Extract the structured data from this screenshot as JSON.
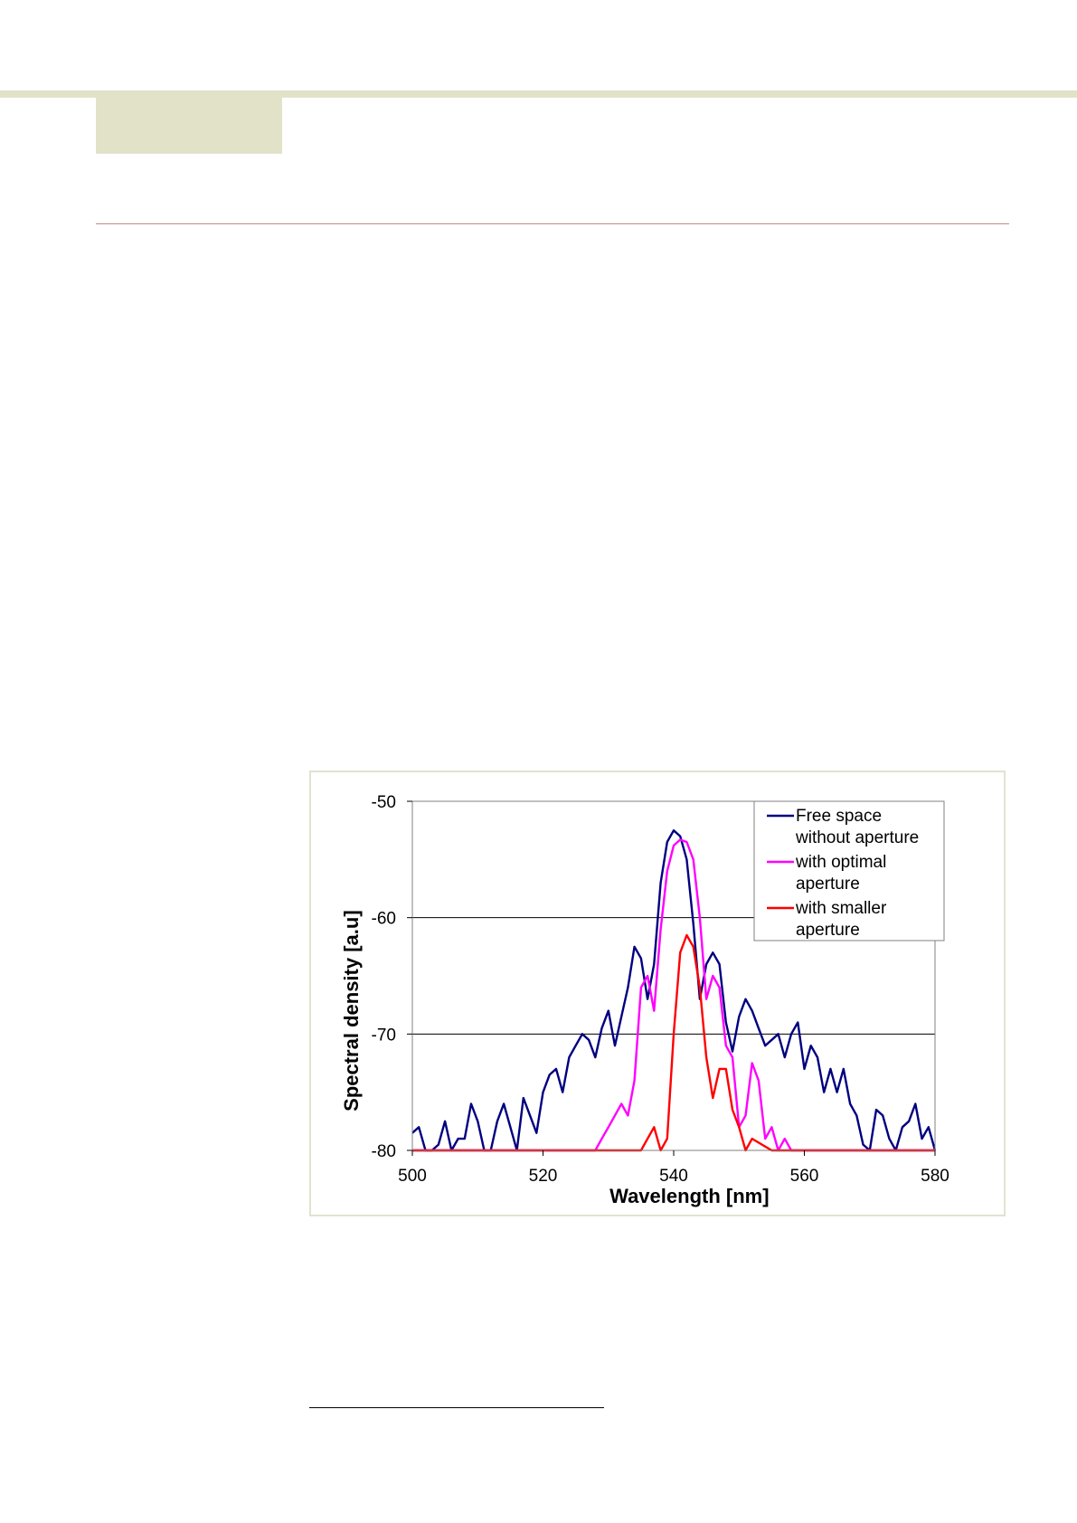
{
  "chart_data": {
    "type": "line",
    "xlabel": "Wavelength [nm]",
    "ylabel": "Spectral density [a.u]",
    "xlim": [
      500,
      580
    ],
    "ylim": [
      -80,
      -50
    ],
    "x_ticks": [
      "500",
      "520",
      "540",
      "560",
      "580"
    ],
    "y_ticks": [
      "-50",
      "-60",
      "-70",
      "-80"
    ],
    "grid": "horizontal",
    "legend_position": "top-right",
    "series": [
      {
        "name": "Free space without aperture",
        "legend_lines": [
          "Free space",
          "without aperture"
        ],
        "color": "#000080",
        "x": [
          500,
          501,
          502,
          503,
          504,
          505,
          506,
          507,
          508,
          509,
          510,
          511,
          512,
          513,
          514,
          515,
          516,
          517,
          518,
          519,
          520,
          521,
          522,
          523,
          524,
          525,
          526,
          527,
          528,
          529,
          530,
          531,
          532,
          533,
          534,
          535,
          536,
          537,
          538,
          539,
          540,
          541,
          542,
          543,
          544,
          545,
          546,
          547,
          548,
          549,
          550,
          551,
          552,
          553,
          554,
          555,
          556,
          557,
          558,
          559,
          560,
          561,
          562,
          563,
          564,
          565,
          566,
          567,
          568,
          569,
          570,
          571,
          572,
          573,
          574,
          575,
          576,
          577,
          578,
          579,
          580
        ],
        "y": [
          -78.5,
          -78,
          -80,
          -80,
          -79.5,
          -77.5,
          -80,
          -79,
          -79,
          -76,
          -77.5,
          -80,
          -80,
          -77.5,
          -76,
          -78,
          -80,
          -75.5,
          -77,
          -78.5,
          -75,
          -73.5,
          -73,
          -75,
          -72,
          -71,
          -70,
          -70.5,
          -72,
          -69.5,
          -68,
          -71,
          -68.5,
          -66,
          -62.5,
          -63.5,
          -67,
          -64,
          -57,
          -53.5,
          -52.5,
          -53,
          -55,
          -60.5,
          -67,
          -64,
          -63,
          -64,
          -69,
          -71.5,
          -68.5,
          -67,
          -68,
          -69.5,
          -71,
          -70.5,
          -70,
          -72,
          -70,
          -69,
          -73,
          -71,
          -72,
          -75,
          -73,
          -75,
          -73,
          -76,
          -77,
          -79.5,
          -80,
          -76.5,
          -77,
          -79,
          -80,
          -78,
          -77.5,
          -76,
          -79,
          -78,
          -80
        ]
      },
      {
        "name": "with optimal aperture",
        "legend_lines": [
          "with optimal",
          "aperture"
        ],
        "color": "#ff00ff",
        "x": [
          500,
          502,
          504,
          506,
          508,
          510,
          512,
          514,
          516,
          518,
          520,
          522,
          524,
          526,
          528,
          529,
          530,
          531,
          532,
          533,
          534,
          535,
          536,
          537,
          538,
          539,
          540,
          541,
          542,
          543,
          544,
          545,
          546,
          547,
          548,
          549,
          550,
          551,
          552,
          553,
          554,
          555,
          556,
          557,
          558,
          560,
          565,
          570,
          575,
          580
        ],
        "y": [
          -80,
          -80,
          -80,
          -80,
          -80,
          -80,
          -80,
          -80,
          -80,
          -80,
          -80,
          -80,
          -80,
          -80,
          -80,
          -79,
          -78,
          -77,
          -76,
          -77,
          -74,
          -66,
          -65,
          -68,
          -61,
          -56,
          -53.8,
          -53.3,
          -53.5,
          -55,
          -60,
          -67,
          -65,
          -66,
          -71,
          -72,
          -78,
          -77,
          -72.5,
          -74,
          -79,
          -78,
          -80,
          -79,
          -80,
          -80,
          -80,
          -80,
          -80,
          -80
        ]
      },
      {
        "name": "with smaller aperture",
        "legend_lines": [
          "with smaller",
          "aperture"
        ],
        "color": "#ff0000",
        "x": [
          500,
          510,
          520,
          530,
          535,
          536,
          537,
          538,
          539,
          540,
          541,
          542,
          543,
          544,
          545,
          546,
          547,
          548,
          549,
          550,
          551,
          552,
          555,
          560,
          570,
          580
        ],
        "y": [
          -80,
          -80,
          -80,
          -80,
          -80,
          -79,
          -78,
          -80,
          -79,
          -70,
          -63,
          -61.5,
          -62.5,
          -66,
          -72,
          -75.5,
          -73,
          -73,
          -76.5,
          -78,
          -80,
          -79,
          -80,
          -80,
          -80,
          -80
        ]
      }
    ]
  }
}
